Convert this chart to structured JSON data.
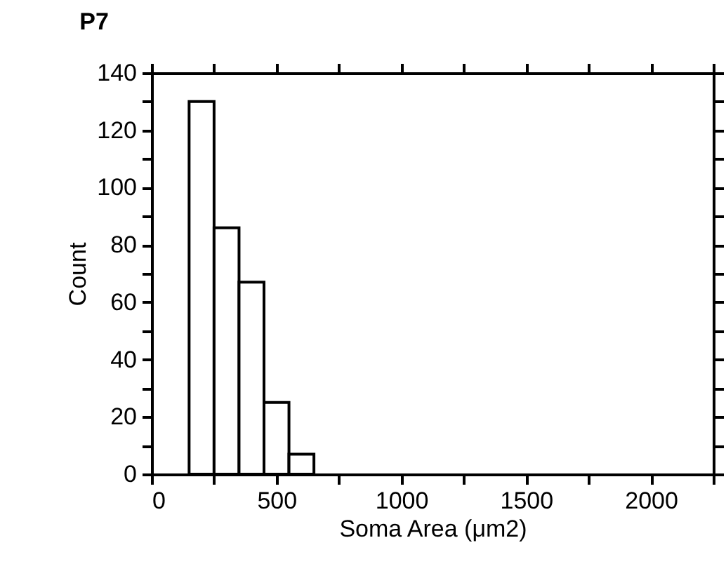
{
  "chart_data": {
    "type": "histogram",
    "title": "P7",
    "xlabel": "Soma Area (μm2)",
    "ylabel": "Count",
    "bins": [
      150,
      250,
      350,
      450,
      550,
      650
    ],
    "values": [
      130,
      86,
      67,
      25,
      7
    ],
    "color": "#ffffff",
    "xlim": [
      0,
      2250
    ],
    "xticks": [
      0,
      {
        "value": 250,
        "label": null
      },
      500,
      {
        "value": 750,
        "label": null
      },
      1000,
      {
        "value": 1250,
        "label": null
      },
      1500,
      {
        "value": 1750,
        "label": null
      },
      2000,
      {
        "value": 2250,
        "label": null
      }
    ],
    "ylim": [
      0,
      140
    ],
    "yticks": [
      0,
      {
        "value": 10,
        "label": null
      },
      20,
      {
        "value": 30,
        "label": null
      },
      40,
      {
        "value": 50,
        "label": null
      },
      60,
      {
        "value": 70,
        "label": null
      },
      80,
      {
        "value": 90,
        "label": null
      },
      100,
      {
        "value": 110,
        "label": null
      },
      120,
      {
        "value": 130,
        "label": null
      },
      140
    ],
    "grid": false
  }
}
